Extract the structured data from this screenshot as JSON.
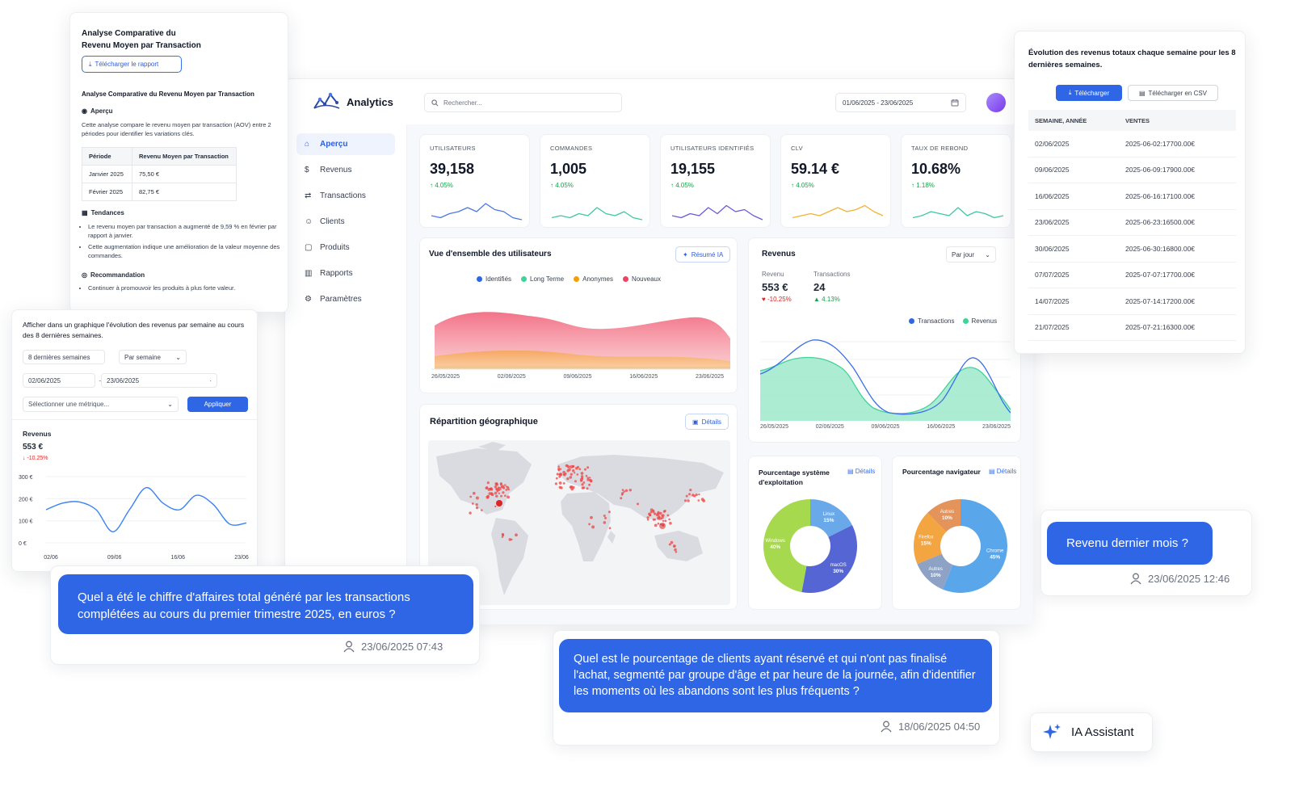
{
  "app": {
    "title": "Analytics"
  },
  "search": {
    "placeholder": "Rechercher..."
  },
  "date_range": "01/06/2025 - 23/06/2025",
  "sidebar": {
    "items": [
      {
        "label": "Aperçu",
        "icon": "home-icon",
        "active": true
      },
      {
        "label": "Revenus",
        "icon": "dollar-icon"
      },
      {
        "label": "Transactions",
        "icon": "transactions-icon"
      },
      {
        "label": "Clients",
        "icon": "users-icon"
      },
      {
        "label": "Produits",
        "icon": "box-icon"
      },
      {
        "label": "Rapports",
        "icon": "report-icon"
      },
      {
        "label": "Paramètres",
        "icon": "gear-icon"
      }
    ]
  },
  "kpis": [
    {
      "label": "UTILISATEURS",
      "value": "39,158",
      "change": "4.05%",
      "color": "#4a78e6"
    },
    {
      "label": "COMMANDES",
      "value": "1,005",
      "change": "4.05%",
      "color": "#3fc7a3"
    },
    {
      "label": "UTILISATEURS IDENTIFIÉS",
      "value": "19,155",
      "change": "4.05%",
      "color": "#6a5ad8"
    },
    {
      "label": "CLV",
      "value": "59.14 €",
      "change": "4.05%",
      "color": "#f3b234"
    },
    {
      "label": "TAUX DE REBOND",
      "value": "10.68%",
      "change": "1.18%",
      "color": "#3fc7a3"
    }
  ],
  "users_overview": {
    "title": "Vue d'ensemble des utilisateurs",
    "button": "Résumé IA",
    "legend": [
      {
        "label": "Identifiés",
        "color": "#2f66e6"
      },
      {
        "label": "Long Terme",
        "color": "#3fd39a"
      },
      {
        "label": "Anonymes",
        "color": "#f59e0b"
      },
      {
        "label": "Nouveaux",
        "color": "#ef4461"
      }
    ],
    "x_ticks": [
      "26/05/2025",
      "02/06/2025",
      "09/06/2025",
      "16/06/2025",
      "23/06/2025"
    ]
  },
  "revenue_card": {
    "title": "Revenus",
    "select": "Par jour",
    "revenue_label": "Revenu",
    "revenue_value": "553 €",
    "revenue_change": "-10.25%",
    "tx_label": "Transactions",
    "tx_value": "24",
    "tx_change": "4.13%",
    "legend": [
      {
        "label": "Transactions",
        "color": "#2f66e6"
      },
      {
        "label": "Revenus",
        "color": "#3fd39a"
      }
    ],
    "x_ticks": [
      "26/05/2025",
      "02/06/2025",
      "09/06/2025",
      "16/06/2025",
      "23/06/2025"
    ]
  },
  "geo": {
    "title": "Répartition géographique",
    "button": "Détails"
  },
  "os_card": {
    "title": "Pourcentage système d'exploitation",
    "link": "Détails",
    "slices": [
      {
        "label": "Linux",
        "pct": "15%",
        "value": 15,
        "color": "#6aa9e9"
      },
      {
        "label": "macOS",
        "pct": "30%",
        "value": 30,
        "color": "#5565d4"
      },
      {
        "label": "Windows",
        "pct": "40%",
        "value": 40,
        "color": "#a7d94e"
      }
    ]
  },
  "browser_card": {
    "title": "Pourcentage navigateur",
    "link": "Détails",
    "slices": [
      {
        "label": "Chrome",
        "pct": "45%",
        "value": 45,
        "color": "#5aa6ea"
      },
      {
        "label": "Autres",
        "pct": "10%",
        "value": 10,
        "color": "#8ea2c6"
      },
      {
        "label": "Firefox",
        "pct": "15%",
        "value": 15,
        "color": "#f2a540"
      },
      {
        "label": "Autres",
        "pct": "10%",
        "value": 10,
        "color": "#e4945a"
      }
    ]
  },
  "aov_panel": {
    "heading": "Analyse Comparative du\nRevenu Moyen par Transaction",
    "download": "Télécharger le rapport",
    "subheading": "Analyse Comparative du Revenu Moyen par Transaction",
    "overview_title": "Aperçu",
    "overview_text": "Cette analyse compare le revenu moyen par transaction (AOV) entre 2 périodes pour identifier les variations clés.",
    "table_headers": [
      "Période",
      "Revenu Moyen par Transaction"
    ],
    "table_rows": [
      [
        "Janvier 2025",
        "75,50 €"
      ],
      [
        "Février 2025",
        "82,75 €"
      ]
    ],
    "trends_title": "Tendances",
    "trends": [
      "Le revenu moyen par transaction a augmenté de 9,59 % en février par rapport à janvier.",
      "Cette augmentation indique une amélioration de la valeur moyenne des commandes."
    ],
    "reco_title": "Recommandation",
    "reco": [
      "Continuer à promouvoir les produits à plus forte valeur."
    ]
  },
  "weekly_chart_panel": {
    "prompt": "Afficher dans un graphique l'évolution des revenus par semaine au cours des 8 dernières semaines.",
    "period_select": "8 dernières semaines",
    "group_select": "Par semaine",
    "date_from": "02/06/2025",
    "date_to": "23/06/2025",
    "metric_placeholder": "Sélectionner une métrique...",
    "apply": "Appliquer",
    "title": "Revenus",
    "value": "553 €",
    "change": "-10.25%",
    "chart_data": {
      "type": "line",
      "categories": [
        "02/06",
        "09/06",
        "16/06",
        "23/06"
      ],
      "y_ticks": [
        "300 €",
        "200 €",
        "100 €",
        "0 €"
      ],
      "ylim": [
        0,
        300
      ],
      "x": [
        0,
        0.5,
        1,
        1.5,
        2,
        2.5,
        3,
        3.5,
        4,
        4.5,
        5,
        5.5,
        6
      ],
      "values": [
        150,
        180,
        185,
        150,
        50,
        150,
        250,
        180,
        150,
        215,
        175,
        85,
        90
      ]
    }
  },
  "weekly_table_panel": {
    "title": "Évolution des revenus totaux chaque semaine pour les 8 dernières semaines.",
    "download": "Télécharger",
    "download_csv": "Télécharger en CSV",
    "headers": [
      "SEMAINE, ANNÉE",
      "VENTES"
    ],
    "rows": [
      [
        "02/06/2025",
        "2025-06-02:17700.00€"
      ],
      [
        "09/06/2025",
        "2025-06-09:17900.00€"
      ],
      [
        "16/06/2025",
        "2025-06-16:17100.00€"
      ],
      [
        "23/06/2025",
        "2025-06-23:16500.00€"
      ],
      [
        "30/06/2025",
        "2025-06-30:16800.00€"
      ],
      [
        "07/07/2025",
        "2025-07-07:17700.00€"
      ],
      [
        "14/07/2025",
        "2025-07-14:17200.00€"
      ],
      [
        "21/07/2025",
        "2025-07-21:16300.00€"
      ]
    ]
  },
  "chats": {
    "q1": {
      "text": "Quel a été le chiffre d'affaires total généré par les transactions complétées au cours du premier trimestre 2025, en euros ?",
      "meta": "23/06/2025 07:43"
    },
    "q2": {
      "text": "Quel est le pourcentage de clients ayant réservé et qui n'ont pas finalisé l'achat, segmenté par groupe d'âge et par heure de la journée, afin d'identifier les moments où les abandons sont les plus fréquents ?",
      "meta": "18/06/2025 04:50"
    },
    "q3": {
      "text": "Revenu dernier mois ?",
      "meta": "23/06/2025 12:46"
    }
  },
  "assistant": {
    "label": "IA Assistant"
  }
}
